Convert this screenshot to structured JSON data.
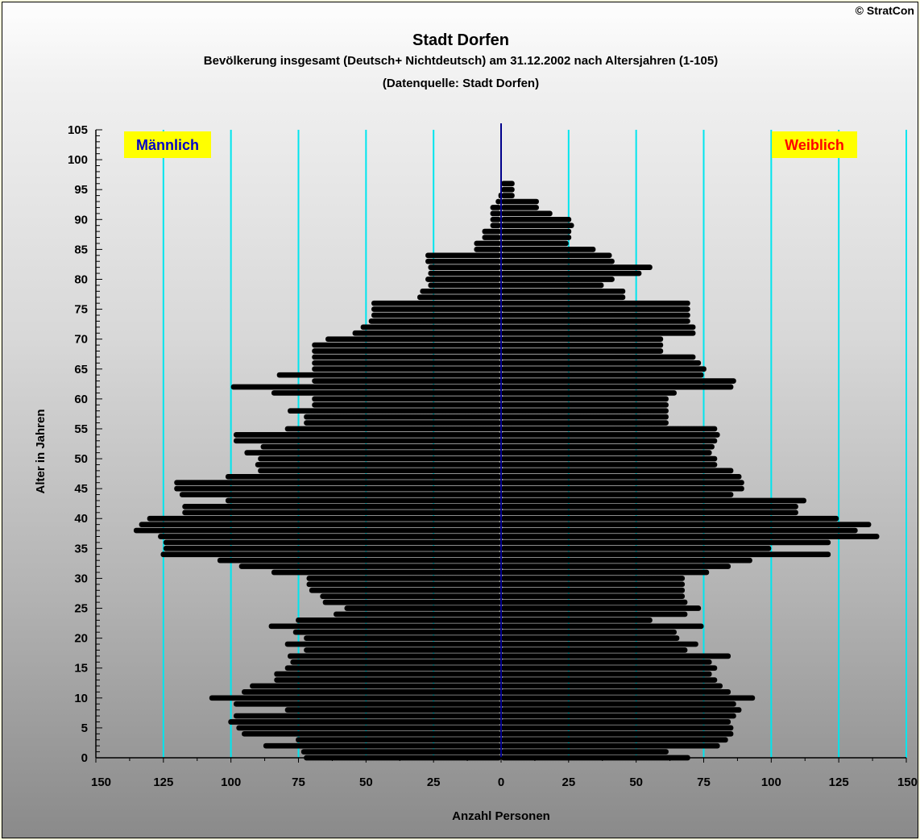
{
  "copyright": "© StratCon",
  "title": "Stadt Dorfen",
  "subtitle": "Bevölkerung insgesamt (Deutsch+ Nichtdeutsch) am 31.12.2002 nach Altersjahren (1-105)",
  "source": "(Datenquelle: Stadt Dorfen)",
  "colors": {
    "bars": "#000000",
    "gridline": "#00e5ee",
    "center_axis": "#00008b",
    "male_label": "#0000cc",
    "female_label": "#ff0000",
    "label_bg": "#ffff00"
  },
  "chart_data": {
    "type": "bar",
    "orientation": "horizontal-population-pyramid",
    "title": "Stadt Dorfen",
    "xlabel": "Anzahl Personen",
    "ylabel": "Alter in Jahren",
    "xlim": [
      -150,
      150
    ],
    "ylim": [
      0,
      105
    ],
    "grid": true,
    "x_ticks": [
      -150,
      -125,
      -100,
      -75,
      -50,
      -25,
      0,
      25,
      50,
      75,
      100,
      125,
      150
    ],
    "x_tick_labels": [
      "150",
      "125",
      "100",
      "75",
      "50",
      "25",
      "0",
      "25",
      "50",
      "75",
      "100",
      "125",
      "150"
    ],
    "y_ticks": [
      0,
      5,
      10,
      15,
      20,
      25,
      30,
      35,
      40,
      45,
      50,
      55,
      60,
      65,
      70,
      75,
      80,
      85,
      90,
      95,
      100,
      105
    ],
    "y_tick_labels": [
      "0",
      "5",
      "10",
      "15",
      "20",
      "25",
      "30",
      "35",
      "40",
      "45",
      "50",
      "55",
      "60",
      "65",
      "70",
      "75",
      "80",
      "85",
      "90",
      "95",
      "100",
      "105"
    ],
    "ages": [
      0,
      1,
      2,
      3,
      4,
      5,
      6,
      7,
      8,
      9,
      10,
      11,
      12,
      13,
      14,
      15,
      16,
      17,
      18,
      19,
      20,
      21,
      22,
      23,
      24,
      25,
      26,
      27,
      28,
      29,
      30,
      31,
      32,
      33,
      34,
      35,
      36,
      37,
      38,
      39,
      40,
      41,
      42,
      43,
      44,
      45,
      46,
      47,
      48,
      49,
      50,
      51,
      52,
      53,
      54,
      55,
      56,
      57,
      58,
      59,
      60,
      61,
      62,
      63,
      64,
      65,
      66,
      67,
      68,
      69,
      70,
      71,
      72,
      73,
      74,
      75,
      76,
      77,
      78,
      79,
      80,
      81,
      82,
      83,
      84,
      85,
      86,
      87,
      88,
      89,
      90,
      91,
      92,
      93,
      94,
      95,
      96
    ],
    "series": [
      {
        "name": "Männlich",
        "values": [
          73,
          74,
          88,
          76,
          96,
          98,
          101,
          99,
          80,
          99,
          108,
          96,
          93,
          84,
          84,
          80,
          78,
          79,
          73,
          80,
          73,
          77,
          86,
          76,
          62,
          58,
          66,
          67,
          71,
          72,
          72,
          85,
          97,
          105,
          126,
          125,
          125,
          127,
          136,
          134,
          131,
          118,
          118,
          102,
          119,
          121,
          121,
          102,
          90,
          91,
          90,
          95,
          89,
          99,
          99,
          80,
          73,
          73,
          79,
          70,
          70,
          85,
          100,
          70,
          83,
          70,
          70,
          70,
          70,
          70,
          65,
          55,
          52,
          49,
          48,
          48,
          48,
          31,
          30,
          27,
          28,
          27,
          27,
          28,
          28,
          10,
          10,
          7,
          7,
          4,
          4,
          4,
          4,
          2,
          1,
          0,
          0
        ]
      },
      {
        "name": "Weiblich",
        "values": [
          70,
          62,
          81,
          84,
          86,
          86,
          85,
          87,
          89,
          87,
          94,
          85,
          82,
          80,
          78,
          80,
          78,
          85,
          69,
          73,
          66,
          65,
          75,
          56,
          69,
          74,
          69,
          68,
          68,
          68,
          68,
          77,
          85,
          93,
          122,
          100,
          122,
          140,
          132,
          137,
          125,
          110,
          110,
          113,
          86,
          90,
          90,
          89,
          86,
          80,
          80,
          78,
          79,
          80,
          81,
          80,
          62,
          62,
          62,
          62,
          62,
          65,
          86,
          87,
          75,
          76,
          74,
          72,
          60,
          60,
          60,
          72,
          72,
          70,
          70,
          70,
          70,
          46,
          46,
          38,
          42,
          52,
          56,
          42,
          41,
          35,
          25,
          26,
          26,
          27,
          26,
          19,
          14,
          14,
          5,
          5,
          5
        ]
      }
    ]
  },
  "labels": {
    "male": "Männlich",
    "female": "Weiblich"
  }
}
